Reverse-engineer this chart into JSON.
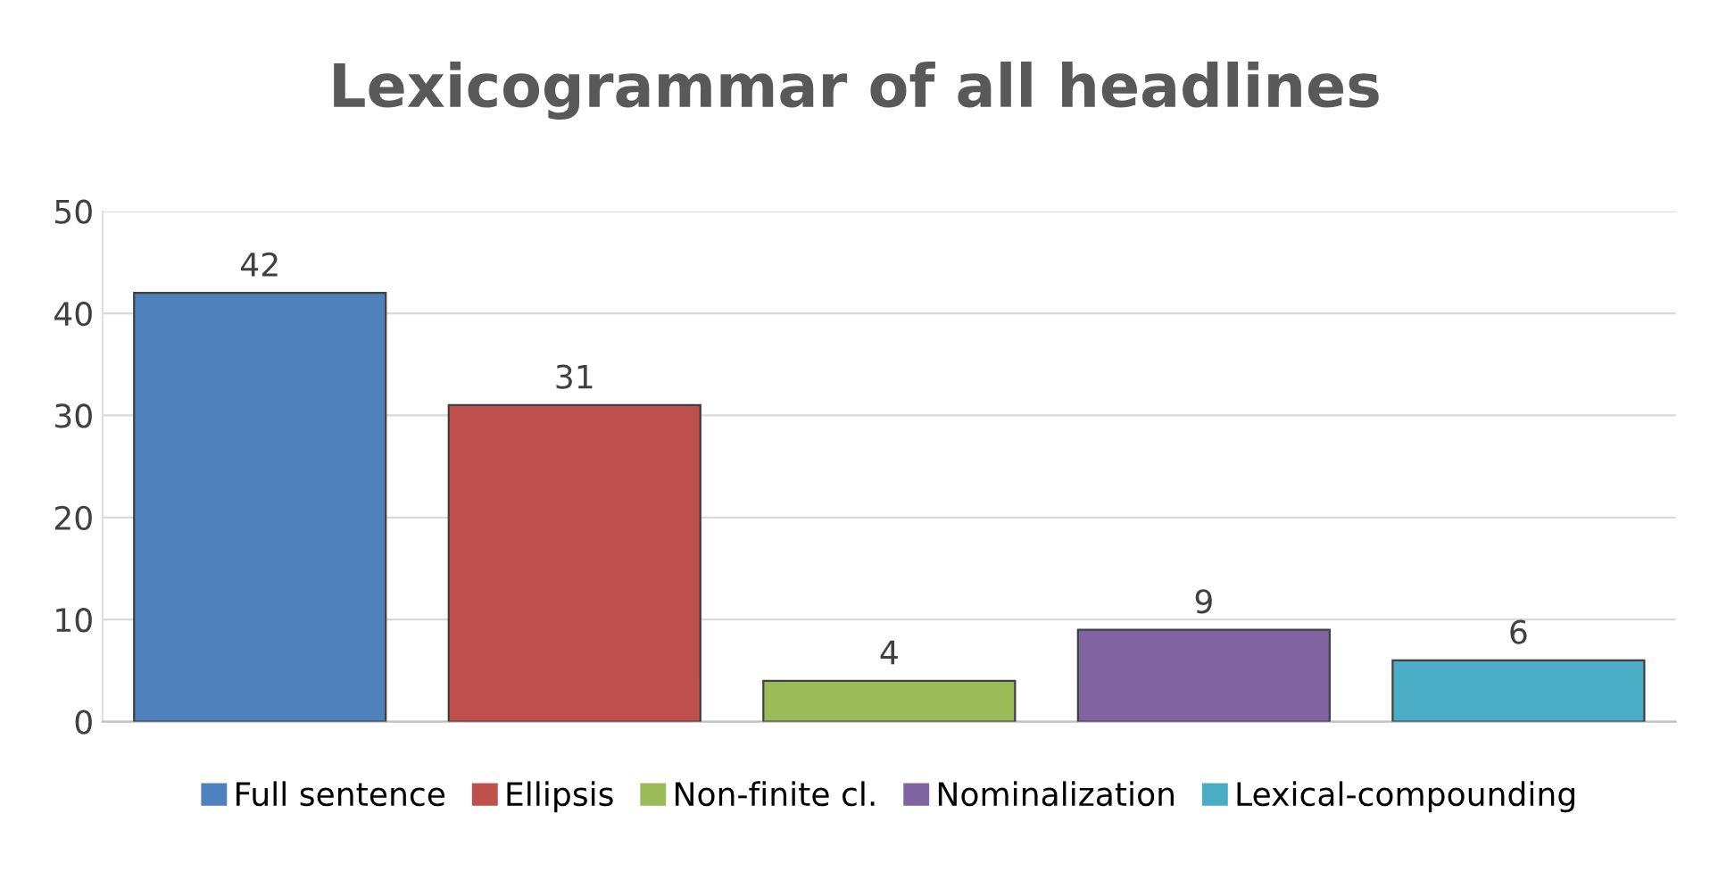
{
  "chart_data": {
    "type": "bar",
    "title": "Lexicogrammar of all headlines",
    "categories": [
      null,
      null,
      null,
      null,
      null
    ],
    "series": [
      {
        "name": "Full sentence",
        "color": "#4f81bd",
        "values": [
          42,
          null,
          null,
          null,
          null
        ]
      },
      {
        "name": "Ellipsis",
        "color": "#c0504d",
        "values": [
          null,
          31,
          null,
          null,
          null
        ]
      },
      {
        "name": "Non-finite cl.",
        "color": "#9bbb59",
        "values": [
          null,
          null,
          4,
          null,
          null
        ]
      },
      {
        "name": "Nominalization",
        "color": "#8064a2",
        "values": [
          null,
          null,
          null,
          9,
          null
        ]
      },
      {
        "name": "Lexical-compounding",
        "color": "#4bacc6",
        "values": [
          null,
          null,
          null,
          null,
          6
        ]
      }
    ],
    "ylim": [
      0,
      50
    ],
    "yticks": [
      0,
      10,
      20,
      30,
      40,
      50
    ],
    "grid": "y",
    "legend": "bottom",
    "data_labels": true
  }
}
